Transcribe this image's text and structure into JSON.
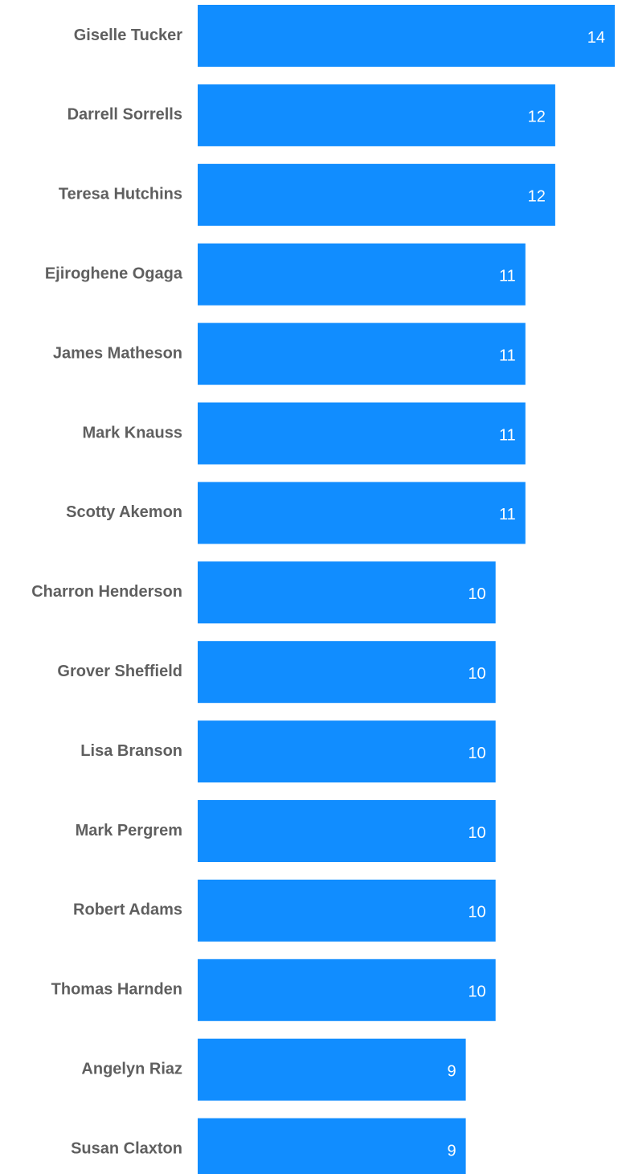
{
  "chart_data": {
    "type": "bar",
    "orientation": "horizontal",
    "categories": [
      "Giselle Tucker",
      "Darrell Sorrells",
      "Teresa Hutchins",
      "Ejiroghene Ogaga",
      "James Matheson",
      "Mark Knauss",
      "Scotty Akemon",
      "Charron Henderson",
      "Grover Sheffield",
      "Lisa Branson",
      "Mark Pergrem",
      "Robert Adams",
      "Thomas Harnden",
      "Angelyn Riaz",
      "Susan Claxton"
    ],
    "values": [
      14,
      12,
      12,
      11,
      11,
      11,
      11,
      10,
      10,
      10,
      10,
      10,
      10,
      9,
      9
    ],
    "xlim": [
      0,
      14
    ],
    "grid": false,
    "legend": "none",
    "data_labels": true,
    "colors": {
      "bar": "#118dff",
      "category_label": "#5f5f5f",
      "data_label": "#ffffff"
    }
  }
}
